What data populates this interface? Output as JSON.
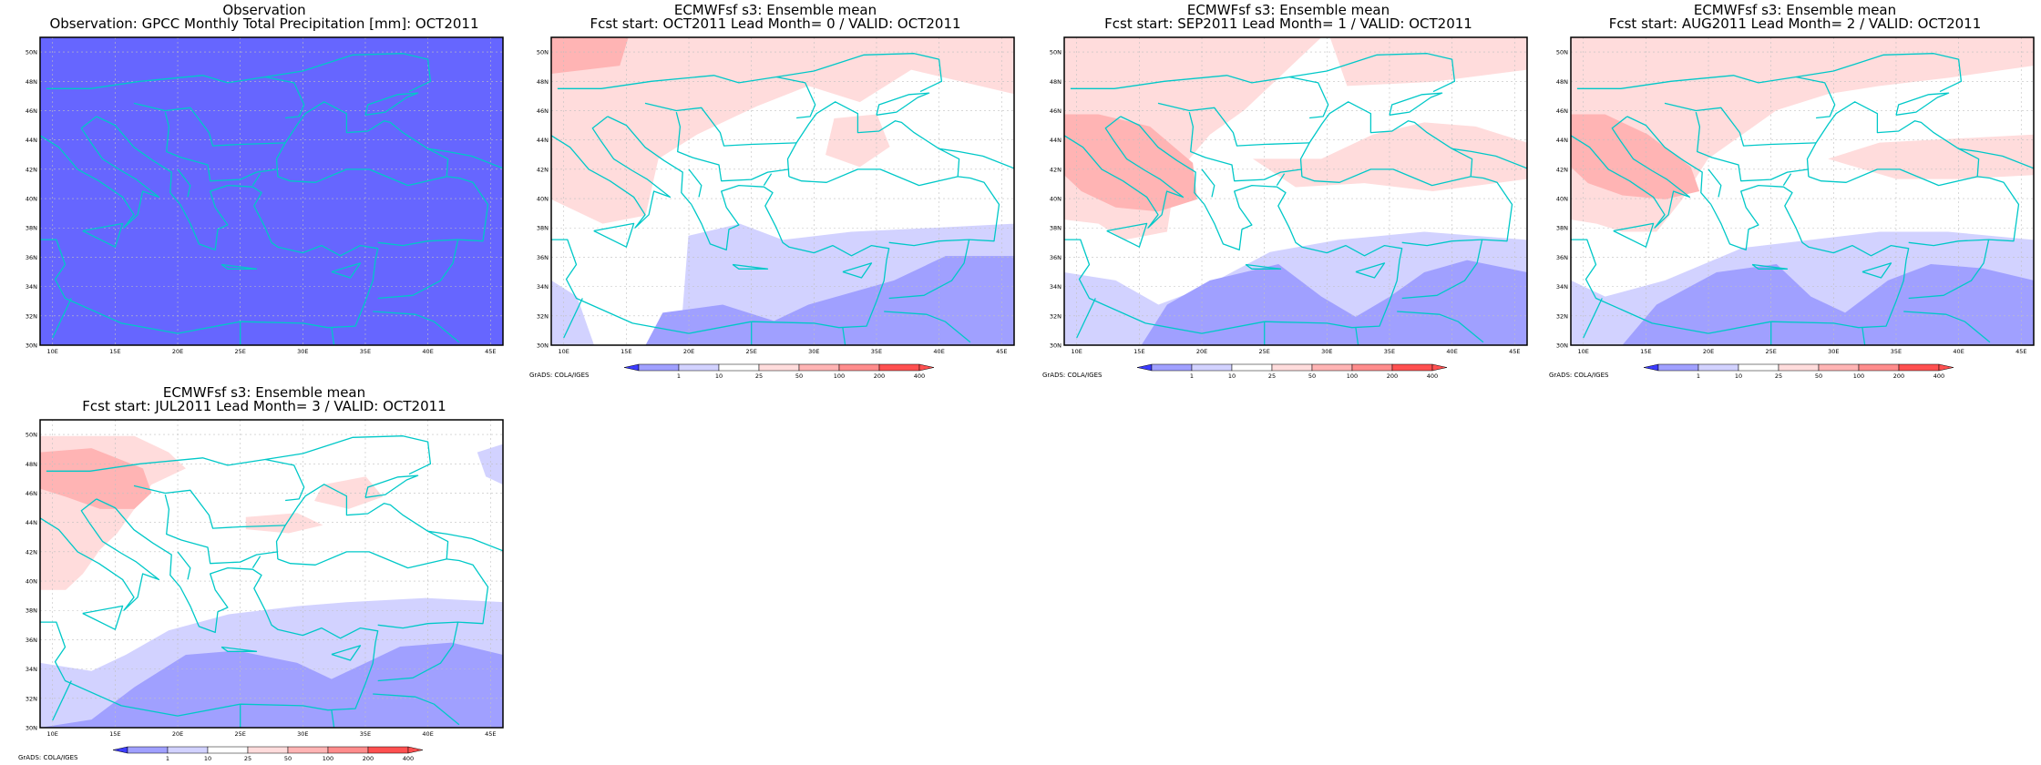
{
  "colors": {
    "coast": "#00c8c8",
    "grid": "#c0c0c0",
    "frame": "#000000",
    "obs_fill": "#6666ff",
    "levels": [
      "#3c3cff",
      "#a0a0ff",
      "#d2d2ff",
      "#ffffff",
      "#ffdcdc",
      "#ffb4b4",
      "#ff8c8c",
      "#ff5050"
    ]
  },
  "axes": {
    "lat_labels": [
      "50N",
      "48N",
      "46N",
      "44N",
      "42N",
      "40N",
      "38N",
      "36N",
      "34N",
      "32N",
      "30N"
    ],
    "lon_labels": [
      "10E",
      "15E",
      "20E",
      "25E",
      "30E",
      "35E",
      "40E",
      "45E"
    ]
  },
  "colorbar": {
    "labels": [
      "1",
      "10",
      "25",
      "50",
      "100",
      "200",
      "400"
    ],
    "units": "mm"
  },
  "panels": [
    {
      "title1": "Observation",
      "title2": "Observation: GPCC Monthly Total Precipitation [mm]: OCT2011",
      "footer": "",
      "show_colorbar": false,
      "field": "uniform-obs"
    },
    {
      "title1": "ECMWFsf s3: Ensemble mean",
      "title2": "Fcst start: OCT2011   Lead Month= 0 / VALID: OCT2011",
      "footer": "GrADS: COLA/IGES",
      "show_colorbar": true,
      "field": "lead-0"
    },
    {
      "title1": "ECMWFsf s3: Ensemble mean",
      "title2": "Fcst start: SEP2011   Lead Month= 1 / VALID: OCT2011",
      "footer": "GrADS: COLA/IGES",
      "show_colorbar": true,
      "field": "lead-1"
    },
    {
      "title1": "ECMWFsf s3: Ensemble mean",
      "title2": "Fcst start: AUG2011   Lead Month= 2 / VALID: OCT2011",
      "footer": "GrADS: COLA/IGES",
      "show_colorbar": true,
      "field": "lead-2"
    },
    {
      "title1": "ECMWFsf s3: Ensemble mean",
      "title2": "Fcst start: JUL2011   Lead Month= 3 / VALID: OCT2011",
      "footer": "GrADS: COLA/IGES",
      "show_colorbar": true,
      "field": "lead-3"
    }
  ]
}
